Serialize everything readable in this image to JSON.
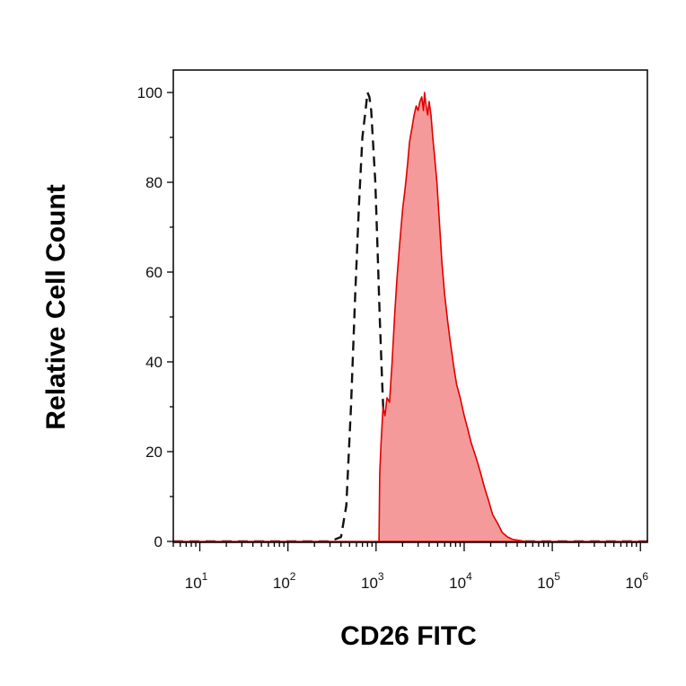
{
  "chart_data": {
    "type": "histogram",
    "xlabel": "CD26 FITC",
    "ylabel": "Relative Cell Count",
    "x_scale": "log",
    "xlim": [
      5,
      1200000
    ],
    "ylim": [
      0,
      105
    ],
    "y_ticks": [
      {
        "value": 0,
        "label": "0"
      },
      {
        "value": 20,
        "label": "20"
      },
      {
        "value": 40,
        "label": "40"
      },
      {
        "value": 60,
        "label": "60"
      },
      {
        "value": 80,
        "label": "80"
      },
      {
        "value": 100,
        "label": "100"
      }
    ],
    "x_ticks": [
      {
        "value": 10,
        "base": "10",
        "exp": "1"
      },
      {
        "value": 100,
        "base": "10",
        "exp": "2"
      },
      {
        "value": 1000,
        "base": "10",
        "exp": "3"
      },
      {
        "value": 10000,
        "base": "10",
        "exp": "4"
      },
      {
        "value": 100000,
        "base": "10",
        "exp": "5"
      },
      {
        "value": 1000000,
        "base": "10",
        "exp": "6"
      }
    ],
    "grid": false,
    "series": [
      {
        "style": "dashed-outline",
        "color": "#111111",
        "points": [
          [
            5,
            0
          ],
          [
            300,
            0
          ],
          [
            400,
            1
          ],
          [
            460,
            8
          ],
          [
            520,
            30
          ],
          [
            580,
            55
          ],
          [
            640,
            75
          ],
          [
            700,
            90
          ],
          [
            760,
            96
          ],
          [
            800,
            100
          ],
          [
            840,
            99
          ],
          [
            880,
            96
          ],
          [
            930,
            88
          ],
          [
            980,
            80
          ],
          [
            1040,
            65
          ],
          [
            1100,
            50
          ],
          [
            1170,
            36
          ],
          [
            1240,
            24
          ],
          [
            1300,
            16
          ],
          [
            1400,
            7
          ],
          [
            1500,
            2
          ],
          [
            1600,
            0.5
          ],
          [
            1800,
            1
          ],
          [
            2000,
            0
          ],
          [
            1200000,
            0
          ]
        ]
      },
      {
        "style": "filled",
        "color": "#e00000",
        "fill": "#f59a9a",
        "points": [
          [
            5,
            0
          ],
          [
            1000,
            0
          ],
          [
            1080,
            0
          ],
          [
            1100,
            15
          ],
          [
            1140,
            22
          ],
          [
            1200,
            30
          ],
          [
            1260,
            28
          ],
          [
            1330,
            32
          ],
          [
            1420,
            31
          ],
          [
            1520,
            40
          ],
          [
            1620,
            50
          ],
          [
            1720,
            58
          ],
          [
            1850,
            66
          ],
          [
            2000,
            74
          ],
          [
            2150,
            79
          ],
          [
            2280,
            84
          ],
          [
            2400,
            89
          ],
          [
            2550,
            92
          ],
          [
            2700,
            95
          ],
          [
            2850,
            97
          ],
          [
            3000,
            96
          ],
          [
            3150,
            98
          ],
          [
            3300,
            99
          ],
          [
            3450,
            96
          ],
          [
            3550,
            100
          ],
          [
            3700,
            97
          ],
          [
            3850,
            95
          ],
          [
            4000,
            98
          ],
          [
            4200,
            95
          ],
          [
            4400,
            90
          ],
          [
            4600,
            86
          ],
          [
            4900,
            80
          ],
          [
            5200,
            72
          ],
          [
            5600,
            62
          ],
          [
            6000,
            55
          ],
          [
            6500,
            49
          ],
          [
            7000,
            44
          ],
          [
            7600,
            39
          ],
          [
            8200,
            35
          ],
          [
            9000,
            32
          ],
          [
            10000,
            28
          ],
          [
            11000,
            25
          ],
          [
            12000,
            22
          ],
          [
            13500,
            19
          ],
          [
            15000,
            16
          ],
          [
            17000,
            12
          ],
          [
            19000,
            9
          ],
          [
            21000,
            6
          ],
          [
            24000,
            4
          ],
          [
            27000,
            2
          ],
          [
            31000,
            1
          ],
          [
            35000,
            0.5
          ],
          [
            40000,
            0.3
          ],
          [
            50000,
            0
          ],
          [
            1200000,
            0
          ]
        ]
      }
    ]
  }
}
